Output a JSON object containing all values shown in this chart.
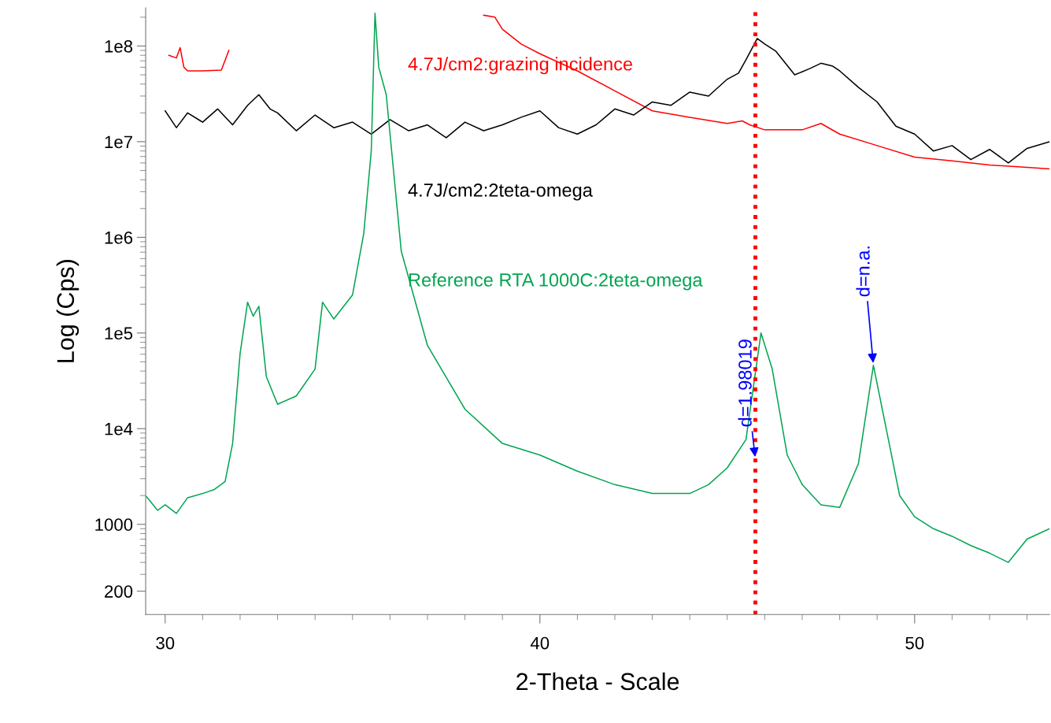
{
  "chart_data": {
    "type": "line",
    "xlabel": "2-Theta - Scale",
    "ylabel": "Log (Cps)",
    "log": "y",
    "grid": false,
    "legend": false,
    "marker": "none",
    "line_style": "solid",
    "xlim": [
      29.48,
      53.6
    ],
    "xticks": [
      30,
      40,
      50
    ],
    "ylim": [
      114,
      250000000
    ],
    "yticks": [
      {
        "value": 200,
        "label": "200"
      },
      {
        "value": 1000,
        "label": "1000"
      },
      {
        "value": 10000,
        "label": "1e4"
      },
      {
        "value": 100000,
        "label": "1e5"
      },
      {
        "value": 1000000,
        "label": "1e6"
      },
      {
        "value": 10000000,
        "label": "1e7"
      },
      {
        "value": 100000000,
        "label": "1e8"
      }
    ],
    "series": [
      {
        "name": "4.7J/cm2:grazing incidence",
        "color": "#ff0000",
        "x": [
          30.1,
          30.3,
          30.4,
          30.5,
          30.6,
          31.0,
          31.5,
          31.7,
          35,
          38.5,
          38.8,
          39.0,
          39.5,
          40.0,
          41.0,
          42.0,
          43.0,
          44.0,
          45.0,
          45.4,
          45.6,
          46.0,
          47.0,
          47.5,
          48.0,
          49.0,
          50.0,
          51.0,
          52.0,
          53.0,
          53.6
        ],
        "values": [
          80000000,
          75000000,
          96000000,
          60000000,
          55000000,
          55000000,
          56000000,
          90000000,
          null,
          210000000,
          200000000,
          150000000,
          105000000,
          83000000,
          55000000,
          34000000,
          21000000,
          18000000,
          15500000,
          16500000,
          15000000,
          13300000,
          13300000,
          15500000,
          12000000,
          9100000,
          6900000,
          6300000,
          5700000,
          5400000,
          5200000
        ]
      },
      {
        "name": "4.7J/cm2:2teta-omega",
        "color": "#000000",
        "x": [
          30.0,
          30.3,
          30.6,
          31.0,
          31.4,
          31.8,
          32.2,
          32.5,
          32.8,
          33.0,
          33.5,
          34.0,
          34.5,
          35.0,
          35.5,
          36.0,
          36.5,
          37.0,
          37.5,
          38.0,
          38.5,
          39.0,
          39.5,
          40.0,
          40.5,
          41.0,
          41.5,
          42.0,
          42.5,
          43.0,
          43.5,
          44.0,
          44.5,
          45.0,
          45.3,
          45.5,
          45.8,
          46.0,
          46.3,
          46.8,
          47.2,
          47.5,
          47.8,
          48.0,
          48.5,
          49.0,
          49.5,
          50.0,
          50.5,
          51.0,
          51.5,
          52.0,
          52.5,
          53.0,
          53.6
        ],
        "values": [
          21000000,
          14000000,
          20000000,
          16000000,
          22000000,
          15000000,
          24000000,
          31000000,
          22000000,
          20000000,
          13000000,
          19000000,
          14000000,
          16000000,
          12000000,
          17000000,
          13000000,
          15000000,
          11000000,
          16000000,
          13000000,
          15000000,
          18000000,
          21000000,
          14000000,
          12000000,
          15000000,
          22000000,
          19000000,
          26000000,
          24000000,
          33000000,
          30000000,
          45000000,
          52000000,
          72000000,
          120000000,
          105000000,
          88000000,
          50000000,
          58000000,
          66000000,
          62000000,
          55000000,
          37000000,
          26000000,
          14500000,
          12000000,
          8000000,
          9100000,
          6500000,
          8300000,
          6000000,
          8500000,
          10000000
        ]
      },
      {
        "name": "Reference RTA 1000C:2teta-omega",
        "color": "#00a550",
        "x": [
          29.5,
          29.8,
          30.0,
          30.3,
          30.6,
          31.0,
          31.3,
          31.6,
          31.8,
          32.0,
          32.2,
          32.35,
          32.5,
          32.7,
          33.0,
          33.5,
          34.0,
          34.2,
          34.5,
          35.0,
          35.3,
          35.5,
          35.6,
          35.7,
          35.9,
          36.3,
          37.0,
          38.0,
          39.0,
          40.0,
          41.0,
          42.0,
          43.0,
          44.0,
          44.5,
          45.0,
          45.5,
          45.9,
          46.2,
          46.6,
          47.0,
          47.5,
          48.0,
          48.5,
          48.9,
          49.3,
          49.6,
          50.0,
          50.5,
          51.0,
          51.5,
          52.0,
          52.5,
          53.0,
          53.6
        ],
        "values": [
          1950,
          1400,
          1600,
          1300,
          1900,
          2100,
          2300,
          2800,
          7000,
          61000,
          210000,
          150000,
          190000,
          35000,
          18000,
          22000,
          42000,
          210000,
          140000,
          250000,
          1100000,
          8000000,
          220000000,
          60000000,
          31000000,
          720000,
          74000,
          16000,
          7000,
          5300,
          3600,
          2600,
          2100,
          2100,
          2600,
          3900,
          7700,
          100000,
          42000,
          5300,
          2600,
          1600,
          1500,
          4300,
          46000,
          7700,
          2000,
          1200,
          900,
          750,
          600,
          500,
          400,
          700,
          900
        ]
      }
    ],
    "ref_lines": [
      {
        "axis": "x",
        "value": 45.75,
        "color": "#ff0000",
        "line_style": "dotted"
      }
    ],
    "annotations": [
      {
        "text": "d=1.98019",
        "x": 45.75,
        "y": 4800
      },
      {
        "text": "d=n.a.",
        "x": 48.9,
        "y": 46000
      }
    ]
  }
}
